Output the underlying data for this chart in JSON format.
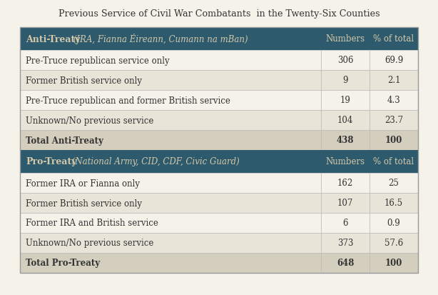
{
  "title": "Previous Service of Civil War Combatants  in the Twenty-Six Counties",
  "header1_bold": "Anti-Treaty",
  "header1_italic": " (IRA, Fianna Éireann, Cumann na mBan)",
  "header2_bold": "Pro-Treaty",
  "header2_italic": " (National Army, CID, CDF, Civic Guard)",
  "col_headers": [
    "Numbers",
    "% of total"
  ],
  "anti_treaty_rows": [
    [
      "Pre-Truce republican service only",
      "306",
      "69.9"
    ],
    [
      "Former British service only",
      "9",
      "2.1"
    ],
    [
      "Pre-Truce republican and former British service",
      "19",
      "4.3"
    ],
    [
      "Unknown/No previous service",
      "104",
      "23.7"
    ],
    [
      "Total Anti-Treaty",
      "438",
      "100"
    ]
  ],
  "pro_treaty_rows": [
    [
      "Former IRA or Fianna only",
      "162",
      "25"
    ],
    [
      "Former British service only",
      "107",
      "16.5"
    ],
    [
      "Former IRA and British service",
      "6",
      "0.9"
    ],
    [
      "Unknown/No previous service",
      "373",
      "57.6"
    ],
    [
      "Total Pro-Treaty",
      "648",
      "100"
    ]
  ],
  "header_bg": "#2e5a6e",
  "header_text": "#d4c9a8",
  "row_bg_light": "#e8e4d8",
  "row_bg_white": "#f5f2ea",
  "total_bg": "#d4cebe",
  "outer_border": "#999999",
  "title_color": "#333333",
  "row_text_color": "#333333",
  "figure_bg": "#f5f2ea"
}
